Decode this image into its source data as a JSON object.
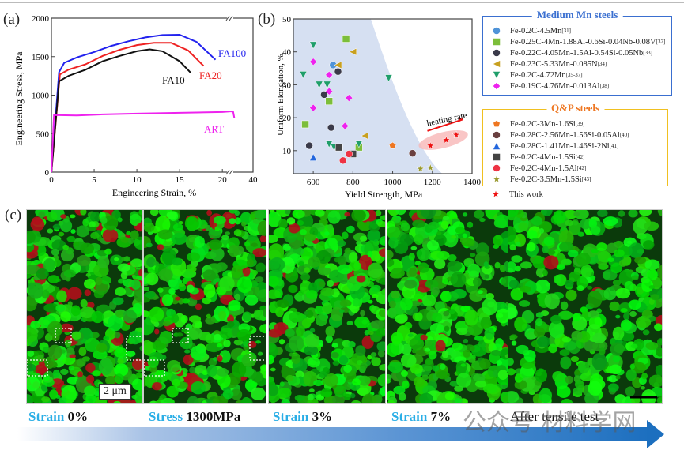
{
  "panels": {
    "a": "(a)",
    "b": "(b)",
    "c": "(c)"
  },
  "chart_data": [
    {
      "type": "line",
      "panel": "(a)",
      "xlabel": "Engineering Strain, %",
      "ylabel": "Engineering Stress, MPa",
      "xlim": [
        0,
        40
      ],
      "ylim": [
        0,
        2000
      ],
      "x_break": "axis break between 20 and 40",
      "xticks": [
        "0",
        "5",
        "10",
        "15",
        "20",
        "40"
      ],
      "yticks": [
        "0",
        "500",
        "1000",
        "1500",
        "2000"
      ],
      "grid": false,
      "series": [
        {
          "name": "FA100",
          "color": "#2222ee",
          "points": [
            [
              0,
              0
            ],
            [
              0.9,
              1300
            ],
            [
              1.5,
              1420
            ],
            [
              3,
              1490
            ],
            [
              5,
              1560
            ],
            [
              7,
              1640
            ],
            [
              9,
              1700
            ],
            [
              11,
              1750
            ],
            [
              13,
              1780
            ],
            [
              15,
              1785
            ],
            [
              17,
              1690
            ],
            [
              19.2,
              1460
            ]
          ]
        },
        {
          "name": "FA20",
          "color": "#ee2222",
          "points": [
            [
              0,
              0
            ],
            [
              1,
              1270
            ],
            [
              2,
              1330
            ],
            [
              4,
              1400
            ],
            [
              6,
              1510
            ],
            [
              8,
              1590
            ],
            [
              10,
              1650
            ],
            [
              12,
              1680
            ],
            [
              14,
              1680
            ],
            [
              16,
              1580
            ],
            [
              17.8,
              1380
            ]
          ]
        },
        {
          "name": "FA10",
          "color": "#111111",
          "points": [
            [
              0,
              0
            ],
            [
              0.9,
              1180
            ],
            [
              2,
              1250
            ],
            [
              4,
              1330
            ],
            [
              6,
              1440
            ],
            [
              8,
              1510
            ],
            [
              10,
              1570
            ],
            [
              11.5,
              1595
            ],
            [
              13,
              1570
            ],
            [
              15,
              1440
            ],
            [
              16.3,
              1290
            ]
          ]
        },
        {
          "name": "ART",
          "color": "#ee22ee",
          "points": [
            [
              0,
              0
            ],
            [
              0.3,
              740
            ],
            [
              3,
              735
            ],
            [
              6,
              750
            ],
            [
              10,
              760
            ],
            [
              15,
              770
            ],
            [
              20,
              780
            ],
            [
              21.5,
              790
            ],
            [
              23,
              780
            ],
            [
              24,
              700
            ]
          ]
        }
      ]
    },
    {
      "type": "scatter",
      "panel": "(b)",
      "xlabel": "Yield Strength, MPa",
      "ylabel": "Uniform Elongation, %",
      "xlim": [
        500,
        1400
      ],
      "ylim": [
        3,
        50
      ],
      "xticks": [
        "600",
        "800",
        "1000",
        "1200",
        "1400"
      ],
      "yticks": [
        "10",
        "20",
        "30",
        "40",
        "50"
      ],
      "annotation": "heating rate",
      "groups": [
        {
          "title": "Medium Mn steels",
          "color": "#3a6fd0",
          "series": [
            {
              "name": "Fe-0.2C-4.5Mn",
              "ref": "[31]",
              "marker": "circle",
              "color": "#4f93d8",
              "points": [
                [
                  700,
                  36
                ]
              ]
            },
            {
              "name": "Fe-0.25C-4Mn-1.88Al-0.6Si-0.04Nb-0.08V",
              "ref": "[32]",
              "marker": "square",
              "color": "#7cbe3a",
              "points": [
                [
                  765,
                  44
                ],
                [
                  560,
                  18
                ],
                [
                  680,
                  25
                ],
                [
                  830,
                  11
                ]
              ]
            },
            {
              "name": "Fe-0.22C-4.05Mn-1.5Al-0.54Si-0.05Nb",
              "ref": "[33]",
              "marker": "circle",
              "color": "#3a3a4a",
              "points": [
                [
                  725,
                  34
                ],
                [
                  655,
                  27
                ],
                [
                  580,
                  11.5
                ],
                [
                  690,
                  17
                ]
              ]
            },
            {
              "name": "Fe-0.23C-5.33Mn-0.085N",
              "ref": "[34]",
              "marker": "triangle-left",
              "color": "#c8a020",
              "points": [
                [
                  800,
                  40
                ],
                [
                  725,
                  36
                ],
                [
                  860,
                  14.5
                ]
              ]
            },
            {
              "name": "Fe-0.2C-4.72Mn",
              "ref": "[35-37]",
              "marker": "triangle-down",
              "color": "#1f9e6a",
              "points": [
                [
                  600,
                  42
                ],
                [
                  550,
                  33
                ],
                [
                  630,
                  30
                ],
                [
                  670,
                  30
                ],
                [
                  980,
                  32
                ],
                [
                  680,
                  12
                ],
                [
                  705,
                  11
                ],
                [
                  830,
                  12
                ]
              ]
            },
            {
              "name": "Fe-0.19C-4.76Mn-0.013Al",
              "ref": "[38]",
              "marker": "diamond",
              "color": "#ee22ee",
              "points": [
                [
                  600,
                  37
                ],
                [
                  680,
                  33
                ],
                [
                  680,
                  28
                ],
                [
                  780,
                  26
                ],
                [
                  600,
                  23
                ],
                [
                  760,
                  17.5
                ]
              ]
            }
          ]
        },
        {
          "title": "Q&P steels",
          "color": "#f0c020",
          "series": [
            {
              "name": "Fe-0.2C-3Mn-1.6Si",
              "ref": "[39]",
              "marker": "pentagon",
              "color": "#ee7722",
              "points": [
                [
                  1000,
                  11.5
                ]
              ]
            },
            {
              "name": "Fe-0.28C-2.56Mn-1.56Si-0.05Al",
              "ref": "[40]",
              "marker": "circle",
              "color": "#6a4040",
              "points": [
                [
                  1100,
                  9.2
                ]
              ]
            },
            {
              "name": "Fe-0.28C-1.41Mn-1.46Si-2Ni",
              "ref": "[41]",
              "marker": "triangle-up",
              "color": "#2266dd",
              "points": [
                [
                  600,
                  8
                ]
              ]
            },
            {
              "name": "Fe-0.2C-4Mn-1.5Si",
              "ref": "[42]",
              "marker": "square",
              "color": "#444444",
              "points": [
                [
                  730,
                  11
                ],
                [
                  800,
                  9
                ]
              ]
            },
            {
              "name": "Fe-0.2C-4Mn-1.5Al",
              "ref": "[42]",
              "marker": "circle",
              "color": "#ee3344",
              "points": [
                [
                  780,
                  9
                ],
                [
                  750,
                  7
                ]
              ]
            },
            {
              "name": "Fe-0.2C-3.5Mn-1.5Si",
              "ref": "[43]",
              "marker": "star",
              "color": "#9a9a30",
              "points": [
                [
                  1140,
                  4.5
                ],
                [
                  1190,
                  4.8
                ]
              ]
            }
          ]
        },
        {
          "title": "",
          "color": "",
          "series": [
            {
              "name": "This work",
              "ref": "",
              "marker": "star",
              "color": "#ee1111",
              "points": [
                [
                  1190,
                  11.5
                ],
                [
                  1270,
                  13.2
                ],
                [
                  1320,
                  14.8
                ]
              ]
            }
          ]
        }
      ]
    }
  ],
  "micrographs": {
    "scale_bar": "2 μm",
    "steps": [
      {
        "key": "Strain",
        "value": "0%"
      },
      {
        "key": "Stress",
        "value": "1300MPa"
      },
      {
        "key": "Strain",
        "value": "3%"
      },
      {
        "key": "Strain",
        "value": "7%"
      },
      {
        "key": "",
        "value": "After tensile test"
      }
    ]
  },
  "watermark": "公众号 材料学网"
}
